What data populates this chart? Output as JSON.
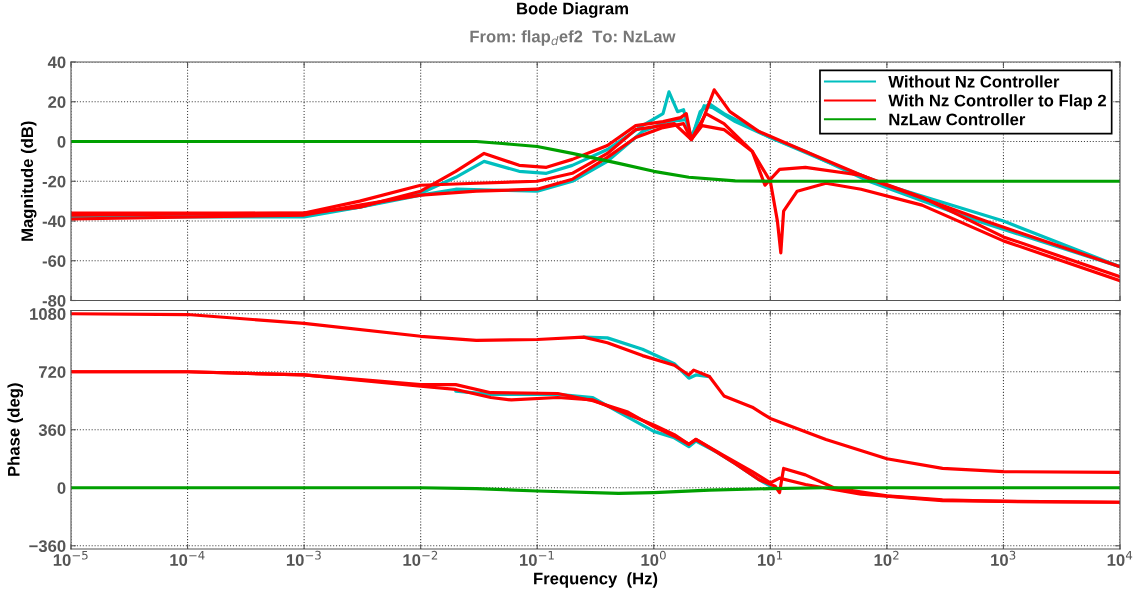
{
  "chart_data": [
    {
      "type": "line",
      "title": "Bode Diagram",
      "subtitle": "From: flap$_{d}$ef2  To: NzLaw",
      "ylabel": "Magnitude (dB)",
      "log": "x",
      "grid": true,
      "legend": "top right",
      "tick_labels": "y",
      "line_style": "solid",
      "xlim": [
        1e-05,
        10000.0
      ],
      "xticks": [
        1e-05,
        0.0001,
        0.001,
        0.01,
        0.1,
        1,
        10,
        100,
        1000,
        10000
      ],
      "ylim": [
        -80,
        40
      ],
      "yticks": [
        -80,
        -60,
        -40,
        -20,
        0,
        20,
        40
      ],
      "series": [
        {
          "name": "Without Nz Controller",
          "color": "#00bfbf",
          "x": [
            1e-05,
            0.001,
            0.003,
            0.01,
            0.02,
            0.035,
            0.07,
            0.12,
            0.2,
            0.4,
            0.8,
            1.2,
            1.35,
            1.6,
            1.8,
            2.1,
            2.5,
            3,
            4,
            10,
            30,
            100,
            1000,
            10000
          ],
          "values": [
            -37,
            -37,
            -33,
            -26,
            -18,
            -10,
            -15,
            -16,
            -12,
            -4,
            8,
            14,
            25,
            15,
            16,
            1,
            15,
            19,
            14,
            2,
            -10,
            -22,
            -40,
            -63
          ]
        },
        {
          "color": "#00bfbf",
          "x": [
            1e-05,
            0.001,
            0.003,
            0.01,
            0.02,
            0.1,
            0.2,
            0.4,
            0.8,
            1.3,
            1.9,
            2.1,
            2.7,
            3.2,
            5,
            10,
            20,
            70,
            600,
            10000
          ],
          "values": [
            -38,
            -38,
            -33,
            -27,
            -24,
            -25,
            -20,
            -10,
            5,
            10,
            11,
            2,
            18,
            17,
            10,
            2,
            -5,
            -20,
            -40,
            -63
          ]
        },
        {
          "name": "With Nz Controller to Flap 2",
          "color": "#ff0000",
          "x": [
            1e-05,
            0.001,
            0.003,
            0.01,
            0.02,
            0.035,
            0.07,
            0.12,
            0.2,
            0.4,
            0.7,
            1.2,
            1.7,
            1.9,
            2.1,
            2.6,
            3.3,
            4.5,
            8,
            20,
            80,
            700,
            10000
          ],
          "values": [
            -36,
            -36,
            -33,
            -25,
            -15,
            -6,
            -12,
            -13,
            -9,
            -2,
            8,
            10,
            12,
            14,
            1,
            10,
            26,
            15,
            5,
            -5,
            -20,
            -40,
            -63
          ]
        },
        {
          "color": "#ff0000",
          "x": [
            1e-05,
            0.001,
            0.003,
            0.01,
            0.03,
            0.1,
            0.2,
            0.4,
            0.7,
            1.2,
            1.8,
            2.1,
            2.6,
            4,
            7,
            10,
            11.5,
            12.3,
            13,
            17,
            30,
            60,
            200,
            1000,
            10000
          ],
          "values": [
            -39,
            -37,
            -32,
            -27,
            -25,
            -24,
            -19,
            -8,
            2,
            7,
            9,
            1,
            8,
            6,
            -5,
            -20,
            -40,
            -56,
            -35,
            -25,
            -21,
            -24,
            -32,
            -50,
            -70
          ]
        },
        {
          "color": "#ff0000",
          "x": [
            1e-05,
            0.001,
            0.003,
            0.01,
            0.03,
            0.1,
            0.2,
            0.4,
            0.7,
            1.5,
            2.1,
            2.8,
            4,
            7,
            9,
            12,
            20,
            60,
            200,
            1000,
            10000
          ],
          "values": [
            -37,
            -36,
            -30,
            -22,
            -21,
            -20,
            -16,
            -6,
            6,
            9,
            1,
            14,
            9,
            -5,
            -22,
            -14,
            -13,
            -17,
            -28,
            -48,
            -68
          ]
        },
        {
          "name": "NzLaw Controller",
          "color": "#00a000",
          "x": [
            1e-05,
            0.03,
            0.05,
            0.1,
            0.2,
            0.5,
            1,
            2,
            5,
            10,
            10000
          ],
          "values": [
            0,
            0,
            -1,
            -2.5,
            -6,
            -11,
            -15,
            -18,
            -19.8,
            -20,
            -20
          ]
        }
      ]
    },
    {
      "type": "line",
      "xlabel": "Frequency  (Hz)",
      "ylabel": "Phase (deg)",
      "log": "x",
      "grid": true,
      "line_style": "solid",
      "xlim": [
        1e-05,
        10000.0
      ],
      "xticks": [
        {
          "value": 1e-05,
          "label": "10$^{−5}$"
        },
        {
          "value": 0.0001,
          "label": "10$^{−4}$"
        },
        {
          "value": 0.001,
          "label": "10$^{−3}$"
        },
        {
          "value": 0.01,
          "label": "10$^{−2}$"
        },
        {
          "value": 0.1,
          "label": "10$^{−1}$"
        },
        {
          "value": 1,
          "label": "10$^{0}$"
        },
        {
          "value": 10,
          "label": "10$^{1}$"
        },
        {
          "value": 100,
          "label": "10$^{2}$"
        },
        {
          "value": 1000,
          "label": "10$^{3}$"
        },
        {
          "value": 10000,
          "label": "10$^{4}$"
        }
      ],
      "ylim": [
        -380,
        1100
      ],
      "yticks": [
        {
          "value": -360,
          "label": "−360"
        },
        0,
        360,
        720,
        1080
      ],
      "series": [
        {
          "color": "#00bfbf",
          "x": [
            0.25,
            0.4,
            0.8,
            1.5,
            2,
            2.3,
            3
          ],
          "values": [
            935,
            930,
            860,
            770,
            680,
            700,
            690
          ]
        },
        {
          "color": "#00bfbf",
          "x": [
            0.02,
            0.04,
            0.15,
            0.3,
            0.5,
            1,
            1.5,
            2,
            2.3,
            3.5,
            5,
            8,
            10
          ],
          "values": [
            600,
            580,
            580,
            560,
            470,
            350,
            310,
            255,
            290,
            220,
            150,
            50,
            10
          ]
        },
        {
          "color": "#ff0000",
          "x": [
            1e-05,
            0.0001,
            0.001,
            0.01,
            0.03,
            0.1,
            0.25,
            0.4,
            0.8,
            1.5,
            2,
            2.2,
            3,
            4,
            7,
            10,
            30,
            100,
            300,
            1000,
            10000
          ],
          "values": [
            1080,
            1075,
            1020,
            940,
            915,
            920,
            935,
            900,
            820,
            760,
            700,
            730,
            690,
            570,
            500,
            430,
            300,
            180,
            120,
            100,
            95
          ]
        },
        {
          "color": "#ff0000",
          "x": [
            1e-05,
            0.0001,
            0.001,
            0.01,
            0.02,
            0.04,
            0.06,
            0.15,
            0.3,
            0.5,
            1,
            1.5,
            2,
            2.3,
            3.5,
            5,
            8,
            11,
            12,
            13,
            20,
            35,
            100,
            300,
            1000,
            10000
          ],
          "values": [
            720,
            720,
            700,
            630,
            610,
            560,
            545,
            560,
            545,
            480,
            390,
            330,
            270,
            300,
            220,
            150,
            50,
            10,
            -30,
            120,
            80,
            0,
            -50,
            -75,
            -85,
            -90
          ]
        },
        {
          "color": "#ff0000",
          "x": [
            1e-05,
            0.0001,
            0.001,
            0.01,
            0.02,
            0.04,
            0.15,
            0.3,
            0.6,
            1,
            1.5,
            2,
            2.3,
            4,
            7,
            10,
            12,
            20,
            60,
            300,
            10000
          ],
          "values": [
            720,
            720,
            700,
            640,
            640,
            590,
            585,
            540,
            470,
            380,
            320,
            270,
            300,
            200,
            100,
            30,
            60,
            20,
            -40,
            -80,
            -90
          ]
        },
        {
          "color": "#00a000",
          "x": [
            1e-05,
            0.01,
            0.03,
            0.1,
            0.5,
            1,
            3,
            10,
            30,
            10000
          ],
          "values": [
            0,
            0,
            -5,
            -20,
            -35,
            -30,
            -15,
            -5,
            0,
            0
          ]
        }
      ]
    }
  ]
}
